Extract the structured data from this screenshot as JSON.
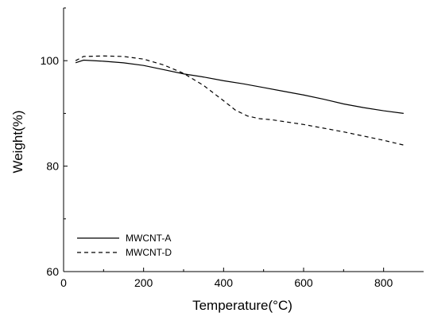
{
  "chart_data": {
    "type": "line",
    "title": "",
    "xlabel": "Temperature(°C)",
    "ylabel": "Weight(%)",
    "xlim": [
      0,
      900
    ],
    "ylim": [
      60,
      110
    ],
    "x_ticks": [
      0,
      200,
      400,
      600,
      800
    ],
    "y_ticks": [
      60,
      80,
      100
    ],
    "grid": false,
    "legend_placement": "lower-left",
    "series": [
      {
        "name": "MWCNT-A",
        "line_style": "solid",
        "color": "#000000",
        "x": [
          30,
          50,
          100,
          150,
          200,
          250,
          300,
          350,
          400,
          450,
          500,
          550,
          600,
          650,
          700,
          750,
          800,
          850
        ],
        "y": [
          99.6,
          100.1,
          99.9,
          99.6,
          99.1,
          98.3,
          97.5,
          96.9,
          96.2,
          95.6,
          94.9,
          94.2,
          93.5,
          92.7,
          91.8,
          91.1,
          90.5,
          90.0
        ]
      },
      {
        "name": "MWCNT-D",
        "line_style": "dashed",
        "color": "#000000",
        "x": [
          30,
          50,
          100,
          150,
          200,
          250,
          300,
          350,
          400,
          430,
          460,
          490,
          520,
          600,
          700,
          800,
          850
        ],
        "y": [
          100.0,
          100.8,
          100.9,
          100.8,
          100.3,
          99.2,
          97.6,
          95.3,
          92.4,
          90.6,
          89.5,
          89.0,
          88.8,
          87.9,
          86.5,
          84.9,
          84.0
        ]
      }
    ]
  }
}
